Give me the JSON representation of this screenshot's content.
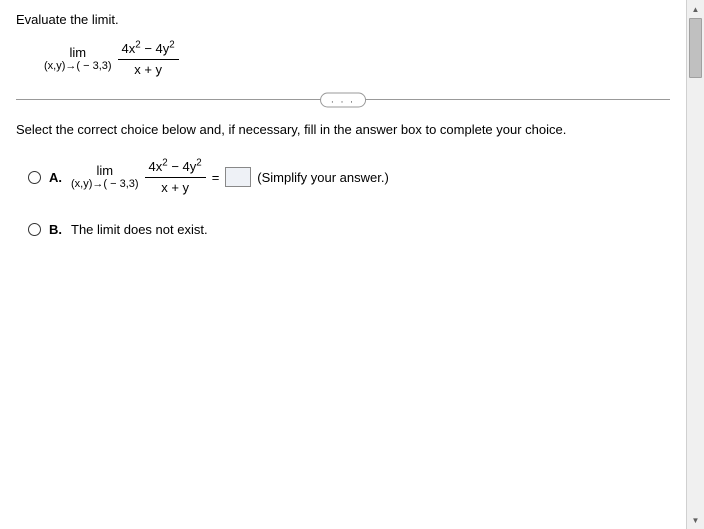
{
  "prompt": "Evaluate the limit.",
  "limit": {
    "limText": "lim",
    "approach": "(x,y)→( − 3,3)",
    "numeratorHtml": "4x<sup>2</sup> − 4y<sup>2</sup>",
    "denominator": "x + y"
  },
  "pill": ". . .",
  "instruction": "Select the correct choice below and, if necessary, fill in the answer box to complete your choice.",
  "choices": {
    "a": {
      "label": "A.",
      "hint": "(Simplify your answer.)",
      "eq": "="
    },
    "b": {
      "label": "B.",
      "text": "The limit does not exist."
    }
  },
  "colors": {
    "text": "#000000",
    "line": "#999999",
    "scrollbarTrack": "#f0f0f0",
    "scrollbarThumb": "#c0c0c0",
    "answerBoxBg": "#eef1f6"
  }
}
